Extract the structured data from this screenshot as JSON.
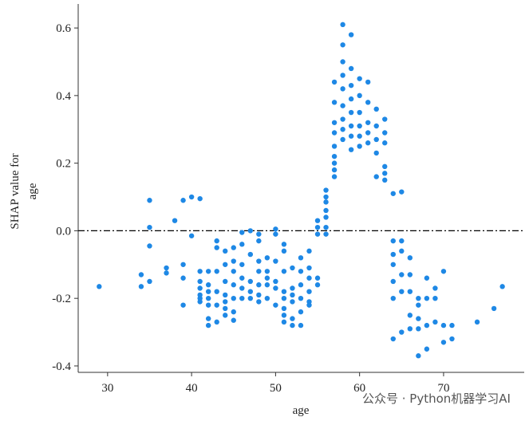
{
  "chart_data": {
    "type": "scatter",
    "x_label": "age",
    "y_label": [
      "SHAP value for",
      "age"
    ],
    "watermark": "公众号 · Python机器学习AI",
    "color": "#1e88e5",
    "hline": 0,
    "xlim": [
      26.5,
      79.6
    ],
    "ylim": [
      -0.419,
      0.671
    ],
    "xticks": [
      30,
      40,
      50,
      60,
      70
    ],
    "yticks": [
      {
        "value": 0.6,
        "label": "0.6"
      },
      {
        "value": 0.4,
        "label": "0.4"
      },
      {
        "value": 0.2,
        "label": "0.2"
      },
      {
        "value": 0,
        "label": "0.0"
      },
      {
        "value": -0.2,
        "label": "-0.2"
      },
      {
        "value": -0.4,
        "label": "-0.4"
      }
    ],
    "x": [
      29,
      34,
      34,
      35,
      35,
      35,
      35,
      37,
      37,
      38,
      39,
      39,
      39,
      39,
      40,
      40,
      41,
      41,
      41,
      41,
      41,
      41,
      41,
      42,
      42,
      42,
      42,
      42,
      42,
      42,
      43,
      43,
      43,
      43,
      43,
      43,
      44,
      44,
      44,
      44,
      44,
      44,
      44,
      45,
      45,
      45,
      45,
      45,
      45,
      45,
      46,
      46,
      46,
      46,
      46,
      46,
      47,
      47,
      47,
      47,
      47,
      48,
      48,
      48,
      48,
      48,
      48,
      48,
      49,
      49,
      49,
      49,
      49,
      50,
      50,
      50,
      50,
      50,
      50,
      51,
      51,
      51,
      51,
      51,
      51,
      51,
      51,
      52,
      52,
      52,
      52,
      52,
      52,
      53,
      53,
      53,
      53,
      53,
      53,
      54,
      54,
      54,
      54,
      54,
      54,
      55,
      55,
      55,
      55,
      55,
      56,
      56,
      56,
      56,
      56,
      56,
      56,
      57,
      57,
      57,
      57,
      57,
      57,
      57,
      57,
      57,
      58,
      58,
      58,
      58,
      58,
      58,
      58,
      58,
      58,
      59,
      59,
      59,
      59,
      59,
      59,
      59,
      59,
      60,
      60,
      60,
      60,
      60,
      60,
      61,
      61,
      61,
      61,
      61,
      62,
      62,
      62,
      62,
      62,
      63,
      63,
      63,
      63,
      63,
      63,
      64,
      64,
      64,
      64,
      64,
      64,
      64,
      65,
      65,
      65,
      65,
      65,
      65,
      66,
      66,
      66,
      66,
      66,
      67,
      67,
      67,
      67,
      67,
      68,
      68,
      68,
      68,
      69,
      69,
      69,
      70,
      70,
      70,
      71,
      71,
      74,
      76,
      77
    ],
    "y": [
      -0.165,
      -0.13,
      -0.165,
      0.09,
      0.01,
      -0.045,
      -0.15,
      -0.11,
      -0.125,
      0.03,
      0.09,
      -0.1,
      -0.14,
      -0.22,
      0.1,
      -0.015,
      0.095,
      -0.12,
      -0.15,
      -0.17,
      -0.19,
      -0.2,
      -0.21,
      -0.12,
      -0.16,
      -0.18,
      -0.2,
      -0.22,
      -0.26,
      -0.28,
      -0.03,
      -0.05,
      -0.12,
      -0.18,
      -0.22,
      -0.27,
      -0.06,
      -0.1,
      -0.15,
      -0.19,
      -0.21,
      -0.23,
      -0.25,
      -0.05,
      -0.09,
      -0.12,
      -0.16,
      -0.2,
      -0.24,
      -0.265,
      -0.005,
      -0.04,
      -0.1,
      -0.14,
      -0.17,
      -0.2,
      0.0,
      -0.07,
      -0.15,
      -0.18,
      -0.2,
      -0.01,
      -0.03,
      -0.09,
      -0.12,
      -0.16,
      -0.19,
      -0.21,
      -0.08,
      -0.12,
      -0.14,
      -0.16,
      -0.2,
      0.005,
      -0.01,
      -0.09,
      -0.15,
      -0.17,
      -0.22,
      -0.04,
      -0.06,
      -0.12,
      -0.18,
      -0.2,
      -0.23,
      -0.25,
      -0.27,
      -0.11,
      -0.17,
      -0.19,
      -0.21,
      -0.26,
      -0.28,
      -0.08,
      -0.12,
      -0.16,
      -0.2,
      -0.24,
      -0.28,
      -0.06,
      -0.11,
      -0.14,
      -0.18,
      -0.21,
      -0.22,
      0.03,
      0.01,
      -0.01,
      -0.14,
      -0.16,
      0.12,
      0.1,
      0.06,
      0.04,
      0.01,
      -0.01,
      0.085,
      0.44,
      0.38,
      0.32,
      0.29,
      0.25,
      0.2,
      0.18,
      0.16,
      0.22,
      0.61,
      0.55,
      0.5,
      0.46,
      0.42,
      0.37,
      0.33,
      0.3,
      0.27,
      0.58,
      0.48,
      0.43,
      0.39,
      0.35,
      0.31,
      0.28,
      0.24,
      0.45,
      0.4,
      0.35,
      0.31,
      0.28,
      0.25,
      0.44,
      0.38,
      0.32,
      0.29,
      0.26,
      0.36,
      0.31,
      0.27,
      0.23,
      0.16,
      0.33,
      0.29,
      0.26,
      0.19,
      0.17,
      0.15,
      0.11,
      -0.03,
      -0.07,
      -0.1,
      -0.15,
      -0.2,
      -0.32,
      0.115,
      -0.03,
      -0.06,
      -0.13,
      -0.18,
      -0.3,
      -0.08,
      -0.13,
      -0.18,
      -0.25,
      -0.29,
      -0.2,
      -0.22,
      -0.26,
      -0.29,
      -0.37,
      -0.14,
      -0.2,
      -0.28,
      -0.35,
      -0.17,
      -0.2,
      -0.27,
      -0.12,
      -0.28,
      -0.33,
      -0.28,
      -0.32,
      -0.27,
      -0.23,
      -0.165
    ]
  }
}
